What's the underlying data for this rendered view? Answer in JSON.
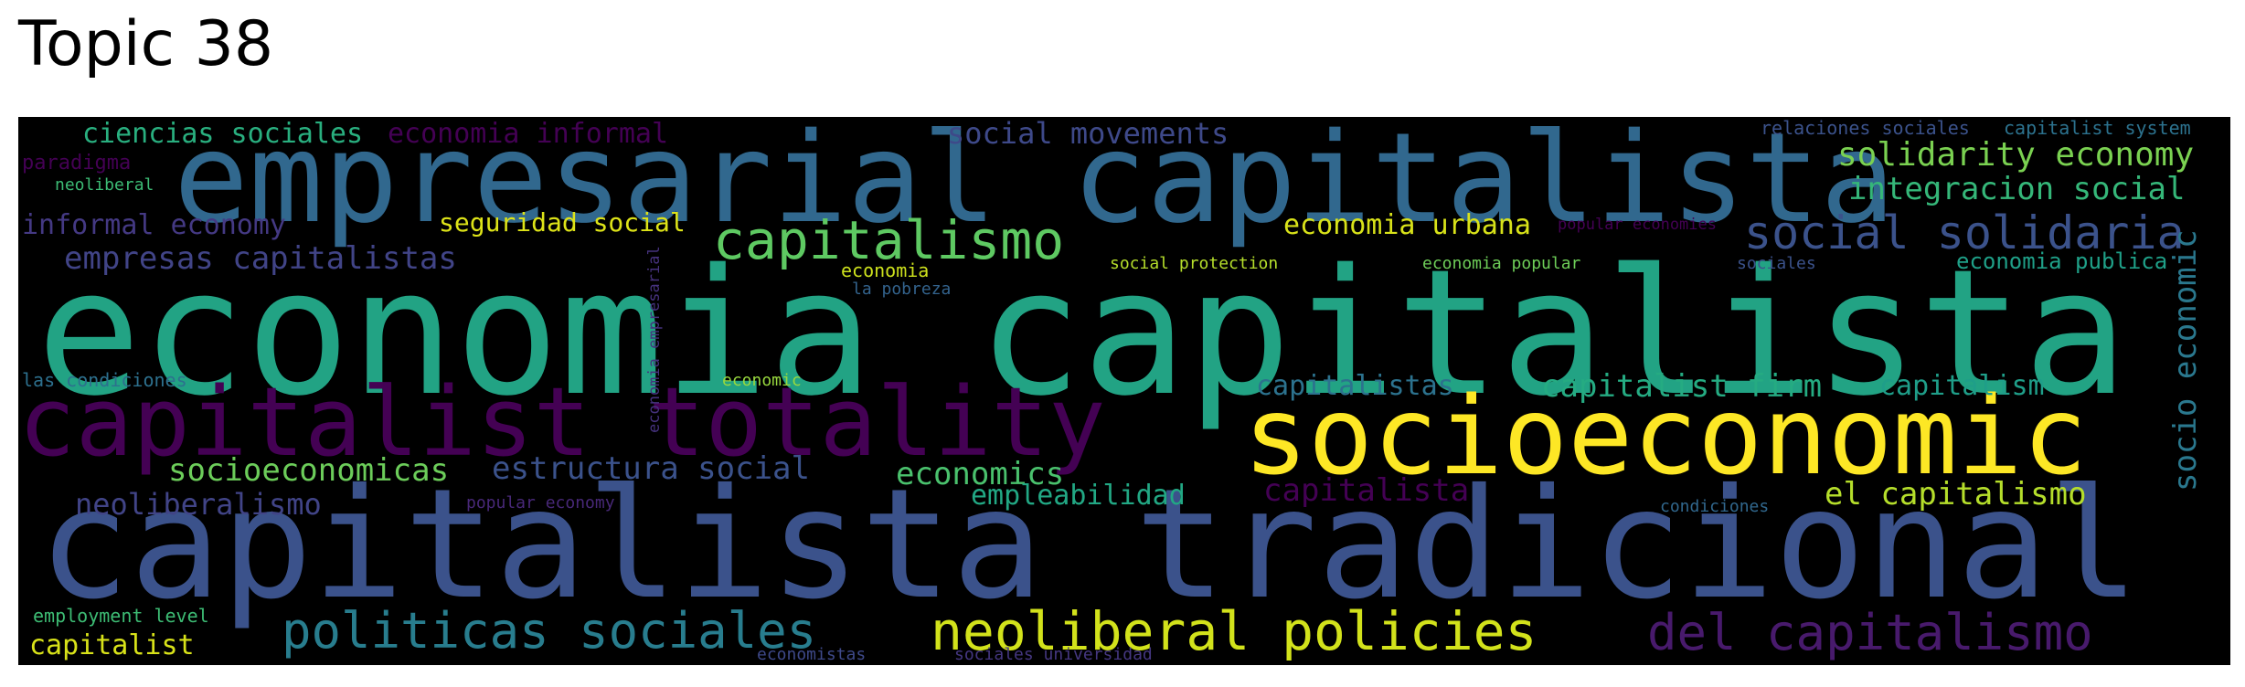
{
  "title": "Topic 38",
  "cloud": {
    "words": [
      {
        "text": "economia capitalista",
        "color": "#22a384"
      },
      {
        "text": "capitalista tradicional",
        "color": "#3b528b"
      },
      {
        "text": "empresarial capitalista",
        "color": "#31688e"
      },
      {
        "text": "socioeconomic",
        "color": "#fde725"
      },
      {
        "text": "capitalist totality",
        "color": "#440154"
      },
      {
        "text": "capitalismo",
        "color": "#5ec962"
      },
      {
        "text": "social solidaria",
        "color": "#3b528b"
      },
      {
        "text": "neoliberal policies",
        "color": "#d2e21b"
      },
      {
        "text": "del capitalismo",
        "color": "#481a6c"
      },
      {
        "text": "politicas sociales",
        "color": "#287d8e"
      },
      {
        "text": "solidarity economy",
        "color": "#7ad151"
      },
      {
        "text": "integracion social",
        "color": "#35b779"
      },
      {
        "text": "social movements",
        "color": "#3e4989"
      },
      {
        "text": "ciencias sociales",
        "color": "#29af7f"
      },
      {
        "text": "economia informal",
        "color": "#440154"
      },
      {
        "text": "informal economy",
        "color": "#443983"
      },
      {
        "text": "seguridad social",
        "color": "#dde318"
      },
      {
        "text": "economia urbana",
        "color": "#d8e219"
      },
      {
        "text": "empresas capitalistas",
        "color": "#414487"
      },
      {
        "text": "capitalistas",
        "color": "#2c728e"
      },
      {
        "text": "capitalist firm",
        "color": "#25ab82"
      },
      {
        "text": "capitalism",
        "color": "#1f9e89"
      },
      {
        "text": "socioeconomicas",
        "color": "#6ccd5a"
      },
      {
        "text": "estructura social",
        "color": "#3b528b"
      },
      {
        "text": "economics",
        "color": "#4ac16d"
      },
      {
        "text": "empleabilidad",
        "color": "#22a884"
      },
      {
        "text": "capitalista",
        "color": "#440154"
      },
      {
        "text": "el capitalismo",
        "color": "#b5de2b"
      },
      {
        "text": "neoliberalismo",
        "color": "#414487"
      },
      {
        "text": "socio economic",
        "color": "#2a788e"
      },
      {
        "text": "economia publica",
        "color": "#1fa088"
      },
      {
        "text": "capitalist",
        "color": "#d8e219"
      },
      {
        "text": "relaciones sociales",
        "color": "#3b528b"
      },
      {
        "text": "capitalist system",
        "color": "#2c728e"
      },
      {
        "text": "paradigma",
        "color": "#440154"
      },
      {
        "text": "neoliberal",
        "color": "#3cbb75"
      },
      {
        "text": "economia",
        "color": "#cde11d"
      },
      {
        "text": "la pobreza",
        "color": "#33638d"
      },
      {
        "text": "social protection",
        "color": "#b5de2b"
      },
      {
        "text": "economia popular",
        "color": "#6ece58"
      },
      {
        "text": "popular economies",
        "color": "#440154"
      },
      {
        "text": "sociales",
        "color": "#3b528b"
      },
      {
        "text": "economia empresarial",
        "color": "#46327e"
      },
      {
        "text": "las condiciones",
        "color": "#2d708e"
      },
      {
        "text": "economic",
        "color": "#98d83e"
      },
      {
        "text": "popular economy",
        "color": "#482878"
      },
      {
        "text": "condiciones",
        "color": "#31688e"
      },
      {
        "text": "employment level",
        "color": "#3dbc74"
      },
      {
        "text": "economistas",
        "color": "#3e4989"
      },
      {
        "text": "sociales universidad",
        "color": "#453781"
      }
    ]
  }
}
